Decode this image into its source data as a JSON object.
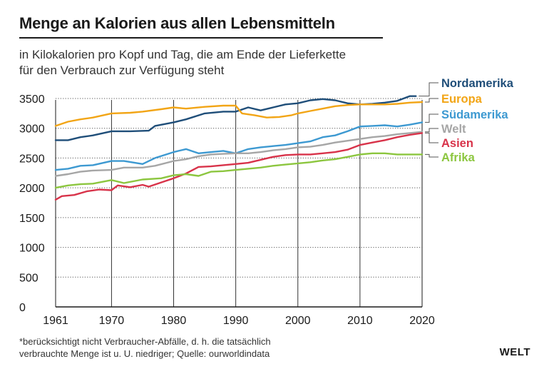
{
  "header": {
    "title": "Menge an Kalorien aus allen Lebensmitteln",
    "subtitle_line1": "in Kilokalorien pro Kopf und Tag, die am Ende der Lieferkette",
    "subtitle_line2": "für den Verbrauch zur Verfügung steht"
  },
  "footer": {
    "note_line1": "*berücksichtigt nicht Verbraucher-Abfälle, d. h. die tatsächlich",
    "note_line2": "verbrauchte Menge ist u. U. niedriger; Quelle: ourworldindata",
    "logo": "WELT"
  },
  "chart_data": {
    "type": "line",
    "title": "Menge an Kalorien aus allen Lebensmitteln",
    "xlim": [
      1961,
      2020
    ],
    "ylim": [
      0,
      3500
    ],
    "x_ticks": [
      1961,
      1970,
      1980,
      1990,
      2000,
      2010,
      2020
    ],
    "y_ticks": [
      0,
      500,
      1000,
      1500,
      2000,
      2500,
      3000,
      3500
    ],
    "grid": "horizontal and vertical",
    "legend_placement": "right, at line ends",
    "series": [
      {
        "name": "Nordamerika",
        "color": "#1f4e79",
        "points": [
          [
            1961,
            2800
          ],
          [
            1963,
            2800
          ],
          [
            1965,
            2850
          ],
          [
            1967,
            2880
          ],
          [
            1970,
            2950
          ],
          [
            1973,
            2950
          ],
          [
            1976,
            2960
          ],
          [
            1977,
            3040
          ],
          [
            1980,
            3100
          ],
          [
            1982,
            3150
          ],
          [
            1985,
            3250
          ],
          [
            1988,
            3280
          ],
          [
            1990,
            3280
          ],
          [
            1992,
            3350
          ],
          [
            1994,
            3300
          ],
          [
            1996,
            3350
          ],
          [
            1998,
            3400
          ],
          [
            2000,
            3420
          ],
          [
            2002,
            3470
          ],
          [
            2004,
            3490
          ],
          [
            2006,
            3470
          ],
          [
            2008,
            3420
          ],
          [
            2010,
            3400
          ],
          [
            2012,
            3410
          ],
          [
            2014,
            3430
          ],
          [
            2016,
            3460
          ],
          [
            2018,
            3540
          ],
          [
            2019,
            3540
          ]
        ]
      },
      {
        "name": "Europa",
        "color": "#f2a516",
        "points": [
          [
            1961,
            3040
          ],
          [
            1963,
            3110
          ],
          [
            1965,
            3150
          ],
          [
            1967,
            3180
          ],
          [
            1970,
            3250
          ],
          [
            1973,
            3260
          ],
          [
            1975,
            3280
          ],
          [
            1978,
            3320
          ],
          [
            1980,
            3350
          ],
          [
            1982,
            3330
          ],
          [
            1985,
            3360
          ],
          [
            1988,
            3380
          ],
          [
            1990,
            3380
          ],
          [
            1991,
            3250
          ],
          [
            1993,
            3220
          ],
          [
            1995,
            3180
          ],
          [
            1997,
            3190
          ],
          [
            1999,
            3220
          ],
          [
            2000,
            3250
          ],
          [
            2002,
            3290
          ],
          [
            2004,
            3330
          ],
          [
            2006,
            3370
          ],
          [
            2008,
            3390
          ],
          [
            2010,
            3400
          ],
          [
            2012,
            3400
          ],
          [
            2014,
            3400
          ],
          [
            2016,
            3410
          ],
          [
            2018,
            3430
          ],
          [
            2020,
            3440
          ]
        ]
      },
      {
        "name": "Südamerika",
        "color": "#3d99d1",
        "points": [
          [
            1961,
            2300
          ],
          [
            1963,
            2320
          ],
          [
            1965,
            2370
          ],
          [
            1967,
            2380
          ],
          [
            1970,
            2450
          ],
          [
            1972,
            2450
          ],
          [
            1975,
            2400
          ],
          [
            1977,
            2500
          ],
          [
            1980,
            2600
          ],
          [
            1982,
            2650
          ],
          [
            1984,
            2580
          ],
          [
            1986,
            2600
          ],
          [
            1988,
            2620
          ],
          [
            1990,
            2580
          ],
          [
            1992,
            2650
          ],
          [
            1994,
            2680
          ],
          [
            1996,
            2700
          ],
          [
            1998,
            2720
          ],
          [
            2000,
            2750
          ],
          [
            2002,
            2780
          ],
          [
            2004,
            2850
          ],
          [
            2006,
            2880
          ],
          [
            2008,
            2950
          ],
          [
            2010,
            3030
          ],
          [
            2012,
            3040
          ],
          [
            2014,
            3050
          ],
          [
            2016,
            3030
          ],
          [
            2018,
            3060
          ],
          [
            2020,
            3100
          ]
        ]
      },
      {
        "name": "Welt",
        "color": "#a6a6a6",
        "points": [
          [
            1961,
            2200
          ],
          [
            1963,
            2230
          ],
          [
            1965,
            2270
          ],
          [
            1967,
            2290
          ],
          [
            1970,
            2300
          ],
          [
            1972,
            2340
          ],
          [
            1975,
            2340
          ],
          [
            1977,
            2370
          ],
          [
            1980,
            2450
          ],
          [
            1982,
            2480
          ],
          [
            1984,
            2530
          ],
          [
            1986,
            2560
          ],
          [
            1988,
            2570
          ],
          [
            1990,
            2580
          ],
          [
            1992,
            2580
          ],
          [
            1994,
            2600
          ],
          [
            1996,
            2630
          ],
          [
            1998,
            2650
          ],
          [
            2000,
            2680
          ],
          [
            2002,
            2690
          ],
          [
            2004,
            2720
          ],
          [
            2006,
            2760
          ],
          [
            2008,
            2790
          ],
          [
            2010,
            2820
          ],
          [
            2012,
            2850
          ],
          [
            2014,
            2870
          ],
          [
            2016,
            2900
          ],
          [
            2018,
            2920
          ],
          [
            2020,
            2940
          ]
        ]
      },
      {
        "name": "Asien",
        "color": "#d8334a",
        "points": [
          [
            1961,
            1800
          ],
          [
            1962,
            1860
          ],
          [
            1964,
            1880
          ],
          [
            1966,
            1940
          ],
          [
            1968,
            1970
          ],
          [
            1970,
            1960
          ],
          [
            1971,
            2040
          ],
          [
            1973,
            2010
          ],
          [
            1975,
            2050
          ],
          [
            1976,
            2020
          ],
          [
            1978,
            2090
          ],
          [
            1980,
            2160
          ],
          [
            1982,
            2240
          ],
          [
            1984,
            2350
          ],
          [
            1986,
            2360
          ],
          [
            1988,
            2380
          ],
          [
            1990,
            2400
          ],
          [
            1992,
            2420
          ],
          [
            1994,
            2470
          ],
          [
            1996,
            2520
          ],
          [
            1998,
            2550
          ],
          [
            2000,
            2560
          ],
          [
            2002,
            2560
          ],
          [
            2004,
            2580
          ],
          [
            2006,
            2600
          ],
          [
            2008,
            2640
          ],
          [
            2010,
            2720
          ],
          [
            2012,
            2760
          ],
          [
            2014,
            2800
          ],
          [
            2016,
            2850
          ],
          [
            2018,
            2890
          ],
          [
            2020,
            2920
          ]
        ]
      },
      {
        "name": "Afrika",
        "color": "#8cc63f",
        "points": [
          [
            1961,
            2000
          ],
          [
            1963,
            2040
          ],
          [
            1965,
            2060
          ],
          [
            1967,
            2070
          ],
          [
            1970,
            2130
          ],
          [
            1972,
            2080
          ],
          [
            1975,
            2140
          ],
          [
            1978,
            2160
          ],
          [
            1980,
            2210
          ],
          [
            1982,
            2230
          ],
          [
            1984,
            2200
          ],
          [
            1986,
            2270
          ],
          [
            1988,
            2280
          ],
          [
            1990,
            2300
          ],
          [
            1992,
            2320
          ],
          [
            1994,
            2340
          ],
          [
            1996,
            2370
          ],
          [
            1998,
            2390
          ],
          [
            2000,
            2410
          ],
          [
            2002,
            2430
          ],
          [
            2004,
            2460
          ],
          [
            2006,
            2480
          ],
          [
            2008,
            2520
          ],
          [
            2010,
            2560
          ],
          [
            2012,
            2580
          ],
          [
            2014,
            2580
          ],
          [
            2016,
            2560
          ],
          [
            2018,
            2560
          ],
          [
            2020,
            2560
          ]
        ]
      }
    ]
  }
}
